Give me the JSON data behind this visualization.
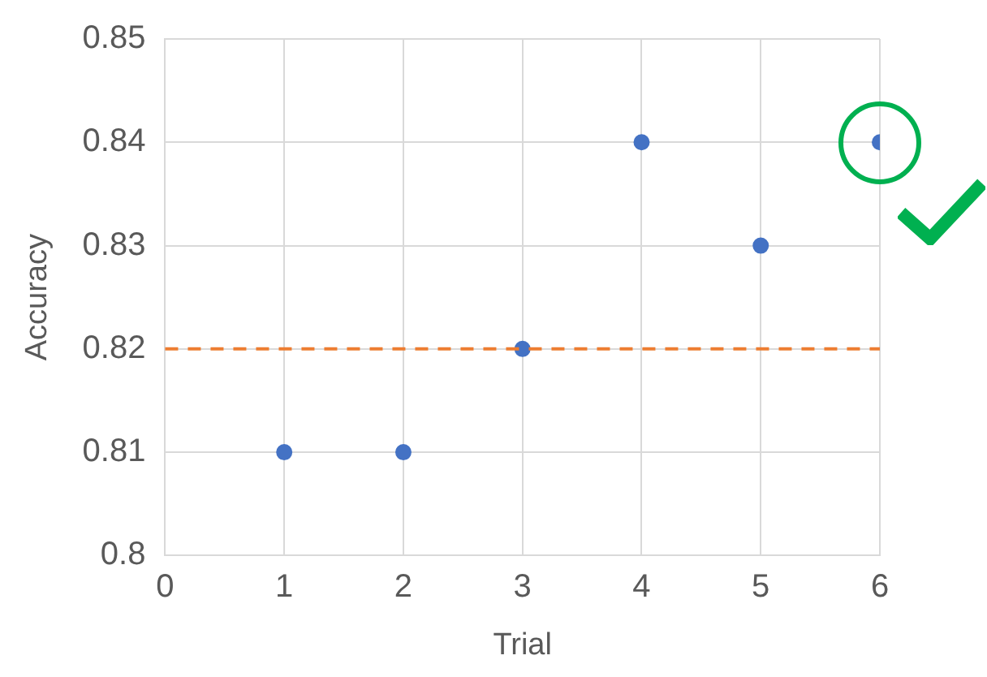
{
  "chart_data": {
    "type": "scatter",
    "xlabel": "Trial",
    "ylabel": "Accuracy",
    "x": [
      1,
      2,
      3,
      4,
      5,
      6
    ],
    "values": [
      0.81,
      0.81,
      0.82,
      0.84,
      0.83,
      0.84
    ],
    "color": "#4472c4",
    "xlim": [
      0,
      6
    ],
    "xticks": [
      0,
      1,
      2,
      3,
      4,
      5,
      6
    ],
    "ylim": [
      0.8,
      0.85
    ],
    "yticks": [
      {
        "value": 0.8,
        "label": "0.8"
      },
      0.81,
      0.82,
      0.83,
      0.84,
      0.85
    ],
    "ref_lines": [
      {
        "axis": "y",
        "value": 0.82,
        "color": "#ed7d31",
        "line_style": "dashed"
      }
    ],
    "grid": true,
    "legend": false,
    "marker": "circle"
  }
}
